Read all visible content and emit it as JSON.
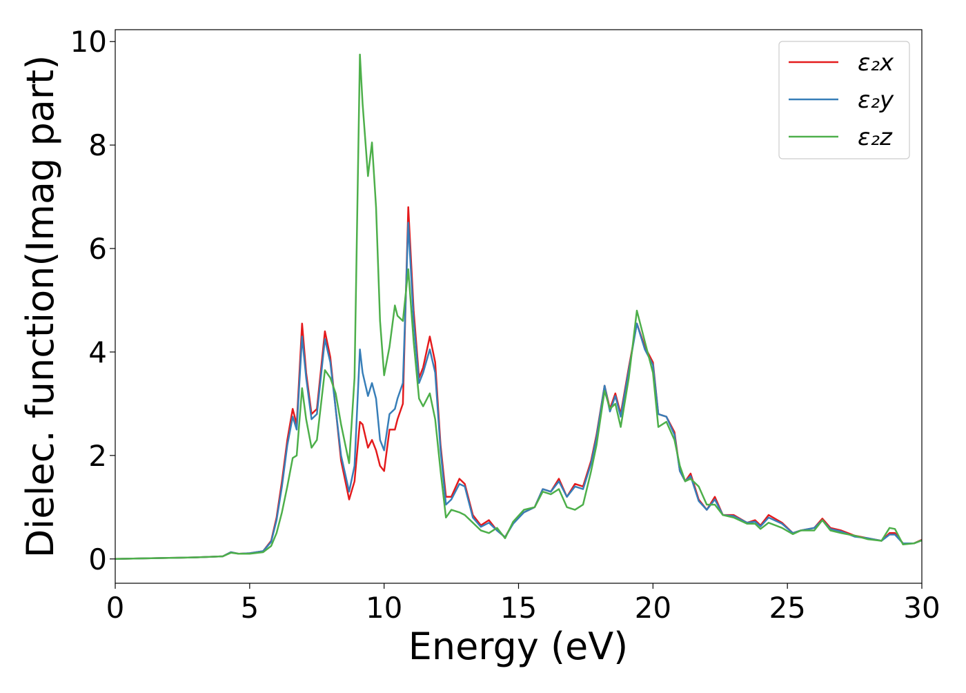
{
  "chart_data": {
    "type": "line",
    "xlabel": "Energy (eV)",
    "ylabel": "Dielec. function(Imag part)",
    "xlim": [
      0,
      30
    ],
    "ylim": [
      -0.47,
      10.23
    ],
    "xticks": [
      0,
      5,
      10,
      15,
      20,
      25,
      30
    ],
    "yticks": [
      0,
      2,
      4,
      6,
      8,
      10
    ],
    "legend": "upper right",
    "x": [
      0,
      1,
      2,
      3,
      4,
      4.3,
      4.6,
      5,
      5.5,
      5.8,
      6.0,
      6.2,
      6.4,
      6.6,
      6.75,
      6.95,
      7.1,
      7.3,
      7.5,
      7.8,
      8.0,
      8.2,
      8.4,
      8.7,
      8.9,
      9.1,
      9.2,
      9.4,
      9.55,
      9.7,
      9.85,
      10.0,
      10.2,
      10.4,
      10.5,
      10.7,
      10.9,
      11.1,
      11.3,
      11.45,
      11.7,
      11.9,
      12.1,
      12.3,
      12.5,
      12.8,
      13.0,
      13.3,
      13.6,
      13.9,
      14.2,
      14.5,
      14.8,
      15.2,
      15.6,
      15.9,
      16.2,
      16.5,
      16.8,
      17.1,
      17.4,
      17.7,
      17.9,
      18.2,
      18.4,
      18.6,
      18.8,
      19.1,
      19.4,
      19.7,
      20.0,
      20.2,
      20.5,
      20.8,
      21.0,
      21.2,
      21.4,
      21.7,
      22.0,
      22.3,
      22.6,
      23.0,
      23.5,
      23.8,
      24.0,
      24.3,
      24.8,
      25.2,
      25.5,
      26.0,
      26.3,
      26.6,
      27.0,
      27.5,
      28.0,
      28.5,
      28.8,
      29.0,
      29.3,
      29.7,
      30
    ],
    "series": [
      {
        "name": "ε₂x",
        "color": "#e41a1c",
        "values": [
          0,
          0.01,
          0.02,
          0.03,
          0.05,
          0.13,
          0.1,
          0.11,
          0.15,
          0.35,
          0.8,
          1.5,
          2.3,
          2.9,
          2.6,
          4.55,
          3.6,
          2.8,
          2.9,
          4.4,
          3.9,
          2.9,
          1.9,
          1.15,
          1.5,
          2.65,
          2.6,
          2.15,
          2.3,
          2.1,
          1.8,
          1.7,
          2.5,
          2.5,
          2.7,
          3.0,
          6.8,
          4.8,
          3.5,
          3.7,
          4.3,
          3.8,
          2.2,
          1.2,
          1.2,
          1.55,
          1.45,
          0.85,
          0.65,
          0.75,
          0.55,
          0.42,
          0.7,
          0.9,
          1.0,
          1.35,
          1.3,
          1.55,
          1.2,
          1.45,
          1.4,
          1.9,
          2.4,
          3.35,
          2.9,
          3.2,
          2.8,
          3.7,
          4.55,
          4.1,
          3.8,
          2.8,
          2.75,
          2.45,
          1.7,
          1.5,
          1.65,
          1.15,
          0.95,
          1.2,
          0.85,
          0.85,
          0.7,
          0.75,
          0.65,
          0.85,
          0.7,
          0.5,
          0.55,
          0.6,
          0.78,
          0.6,
          0.55,
          0.45,
          0.4,
          0.35,
          0.5,
          0.5,
          0.3,
          0.3,
          0.37
        ]
      },
      {
        "name": "ε₂y",
        "color": "#377eb8",
        "values": [
          0,
          0.01,
          0.02,
          0.03,
          0.05,
          0.13,
          0.1,
          0.11,
          0.15,
          0.33,
          0.75,
          1.4,
          2.2,
          2.75,
          2.5,
          4.3,
          3.5,
          2.7,
          2.8,
          4.25,
          3.8,
          2.9,
          2.0,
          1.3,
          1.8,
          4.05,
          3.6,
          3.15,
          3.4,
          3.1,
          2.3,
          2.1,
          2.8,
          2.9,
          3.1,
          3.4,
          6.5,
          4.6,
          3.4,
          3.6,
          4.05,
          3.6,
          2.1,
          1.05,
          1.15,
          1.45,
          1.4,
          0.8,
          0.62,
          0.7,
          0.55,
          0.42,
          0.68,
          0.9,
          1.0,
          1.35,
          1.3,
          1.5,
          1.2,
          1.4,
          1.35,
          1.85,
          2.35,
          3.35,
          2.85,
          3.15,
          2.75,
          3.65,
          4.55,
          4.05,
          3.75,
          2.8,
          2.75,
          2.4,
          1.7,
          1.5,
          1.6,
          1.12,
          0.95,
          1.15,
          0.85,
          0.83,
          0.7,
          0.72,
          0.63,
          0.8,
          0.68,
          0.5,
          0.55,
          0.6,
          0.75,
          0.58,
          0.53,
          0.43,
          0.4,
          0.35,
          0.47,
          0.47,
          0.3,
          0.3,
          0.36
        ]
      },
      {
        "name": "ε₂z",
        "color": "#4daf4a",
        "values": [
          0,
          0.01,
          0.02,
          0.03,
          0.05,
          0.12,
          0.1,
          0.1,
          0.13,
          0.25,
          0.5,
          0.9,
          1.4,
          1.95,
          2.0,
          3.3,
          2.7,
          2.15,
          2.3,
          3.65,
          3.5,
          3.2,
          2.6,
          1.85,
          3.5,
          9.75,
          8.8,
          7.4,
          8.05,
          6.8,
          4.6,
          3.55,
          4.1,
          4.9,
          4.7,
          4.6,
          5.6,
          4.2,
          3.1,
          2.95,
          3.2,
          2.7,
          1.7,
          0.8,
          0.95,
          0.9,
          0.85,
          0.7,
          0.55,
          0.5,
          0.6,
          0.4,
          0.72,
          0.95,
          1.0,
          1.3,
          1.25,
          1.35,
          1.0,
          0.95,
          1.05,
          1.7,
          2.2,
          3.25,
          2.9,
          3.0,
          2.55,
          3.5,
          4.8,
          4.2,
          3.6,
          2.55,
          2.65,
          2.3,
          1.8,
          1.5,
          1.55,
          1.4,
          1.05,
          1.05,
          0.85,
          0.8,
          0.68,
          0.68,
          0.58,
          0.7,
          0.6,
          0.48,
          0.55,
          0.55,
          0.75,
          0.55,
          0.5,
          0.45,
          0.38,
          0.35,
          0.6,
          0.58,
          0.28,
          0.3,
          0.36
        ]
      }
    ]
  }
}
